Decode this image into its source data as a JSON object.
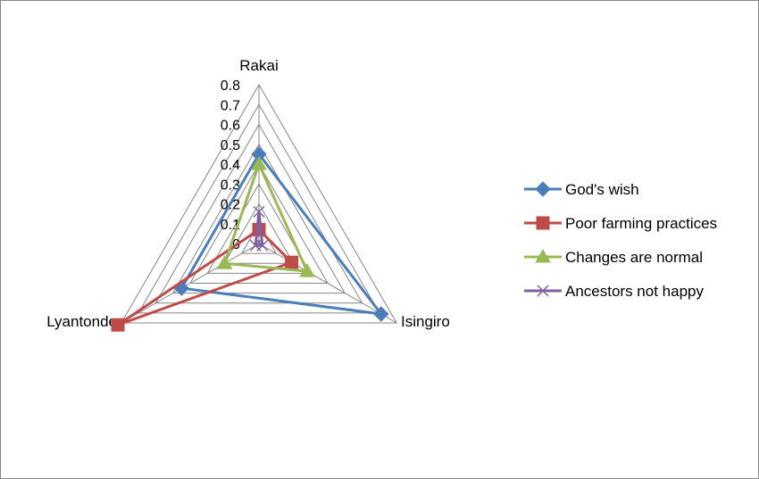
{
  "chart_data": {
    "type": "radar",
    "title": "",
    "categories": [
      "Rakai",
      "Isingiro",
      "Lyantonde"
    ],
    "ylim": [
      0,
      0.8
    ],
    "ticks": [
      "0",
      "0.1",
      "0.2",
      "0.3",
      "0.4",
      "0.5",
      "0.6",
      "0.7",
      "0.8"
    ],
    "grid": true,
    "legend_position": "right",
    "series": [
      {
        "name": "God's wish",
        "color": "#4a7ebb",
        "marker": "diamond",
        "values": [
          0.45,
          0.71,
          0.45
        ]
      },
      {
        "name": "Poor farming practices",
        "color": "#be4b48",
        "marker": "square",
        "values": [
          0.07,
          0.19,
          0.82
        ]
      },
      {
        "name": "Changes are normal",
        "color": "#98b954",
        "marker": "triangle",
        "values": [
          0.4,
          0.28,
          0.2
        ]
      },
      {
        "name": "Ancestors not happy",
        "color": "#7d60a0",
        "marker": "x",
        "values": [
          0.16,
          0.02,
          0.02
        ]
      }
    ]
  }
}
